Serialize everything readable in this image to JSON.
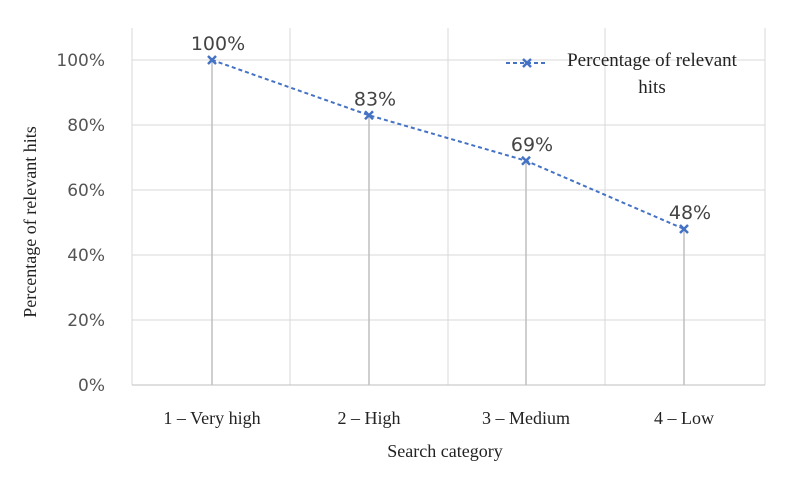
{
  "chart_data": {
    "type": "line",
    "categories": [
      "1 – Very high",
      "2 – High",
      "3 – Medium",
      "4 – Low"
    ],
    "series": [
      {
        "name": "Percentage of relevant hits",
        "values": [
          100,
          83,
          69,
          48
        ],
        "labels": [
          "100%",
          "83%",
          "69%",
          "48%"
        ],
        "color": "#4472C4",
        "line_style": "dashed",
        "marker": "x"
      }
    ],
    "xlabel": "Search category",
    "ylabel": "Percentage of relevant hits",
    "ylim": [
      0,
      100
    ],
    "yticks": [
      "0%",
      "20%",
      "40%",
      "60%",
      "80%",
      "100%"
    ],
    "ytick_values": [
      0,
      20,
      40,
      60,
      80,
      100
    ],
    "drop_lines": true,
    "grid": true,
    "legend": "top-right",
    "legend_lines": [
      "Percentage of relevant",
      "hits"
    ],
    "colors": {
      "series": "#4472C4",
      "grid": "#d9d9d9",
      "drop_line": "#bfbfbf"
    }
  }
}
